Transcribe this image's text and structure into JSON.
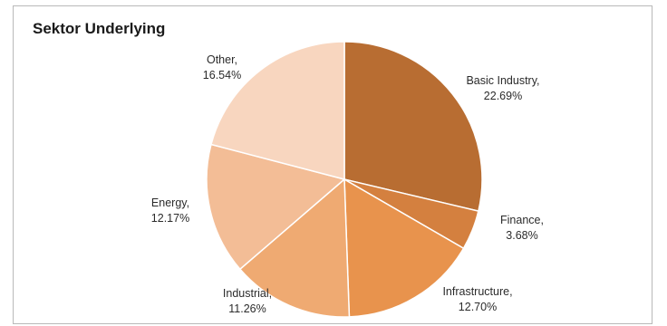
{
  "chart_data": {
    "type": "pie",
    "title": "Sektor Underlying",
    "slices": [
      {
        "name": "Basic Industry",
        "value_label": "22.69%",
        "value": 22.69,
        "color": "#b86d32"
      },
      {
        "name": "Finance",
        "value_label": "3.68%",
        "value": 3.68,
        "color": "#d4803f"
      },
      {
        "name": "Infrastructure",
        "value_label": "12.70%",
        "value": 12.7,
        "color": "#e8934d"
      },
      {
        "name": "Industrial",
        "value_label": "11.26%",
        "value": 11.26,
        "color": "#efaa72"
      },
      {
        "name": "Energy",
        "value_label": "12.17%",
        "value": 12.17,
        "color": "#f3bd96"
      },
      {
        "name": "Other",
        "value_label": "16.54%",
        "value": 16.54,
        "color": "#f8d6bf"
      }
    ]
  }
}
